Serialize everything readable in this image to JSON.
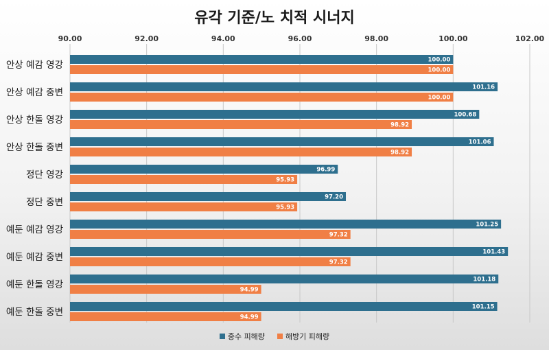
{
  "chart_data": {
    "type": "bar",
    "orientation": "horizontal",
    "title": "유각 기준/노 치적 시너지",
    "categories": [
      "안상 예감 영강",
      "안상 예감 중변",
      "안상 한돌 영강",
      "안상 한돌 중변",
      "정단 영강",
      "정단 중변",
      "예둔 예감 영강",
      "예둔 예감 중변",
      "예둔 한돌 영강",
      "예둔 한돌 중변"
    ],
    "series": [
      {
        "name": "중수 피해량",
        "color": "#2e6f8e",
        "values": [
          100.0,
          101.16,
          100.68,
          101.06,
          96.99,
          97.2,
          101.25,
          101.43,
          101.18,
          101.15
        ],
        "labels": [
          "100.00",
          "101.16",
          "100.68",
          "101.06",
          "96.99",
          "97.20",
          "101.25",
          "101.43",
          "101.18",
          "101.15"
        ]
      },
      {
        "name": "해방기 피해량",
        "color": "#f07f45",
        "values": [
          100.0,
          100.0,
          98.92,
          98.92,
          95.93,
          95.93,
          97.32,
          97.32,
          94.99,
          94.99
        ],
        "labels": [
          "100.00",
          "100.00",
          "98.92",
          "98.92",
          "95.93",
          "95.93",
          "97.32",
          "97.32",
          "94.99",
          "94.99"
        ]
      }
    ],
    "xlim": [
      90,
      102
    ],
    "xticks": [
      "90.00",
      "92.00",
      "94.00",
      "96.00",
      "98.00",
      "100.00",
      "102.00"
    ],
    "axis_position": "top",
    "grid": true,
    "legend_position": "bottom"
  }
}
